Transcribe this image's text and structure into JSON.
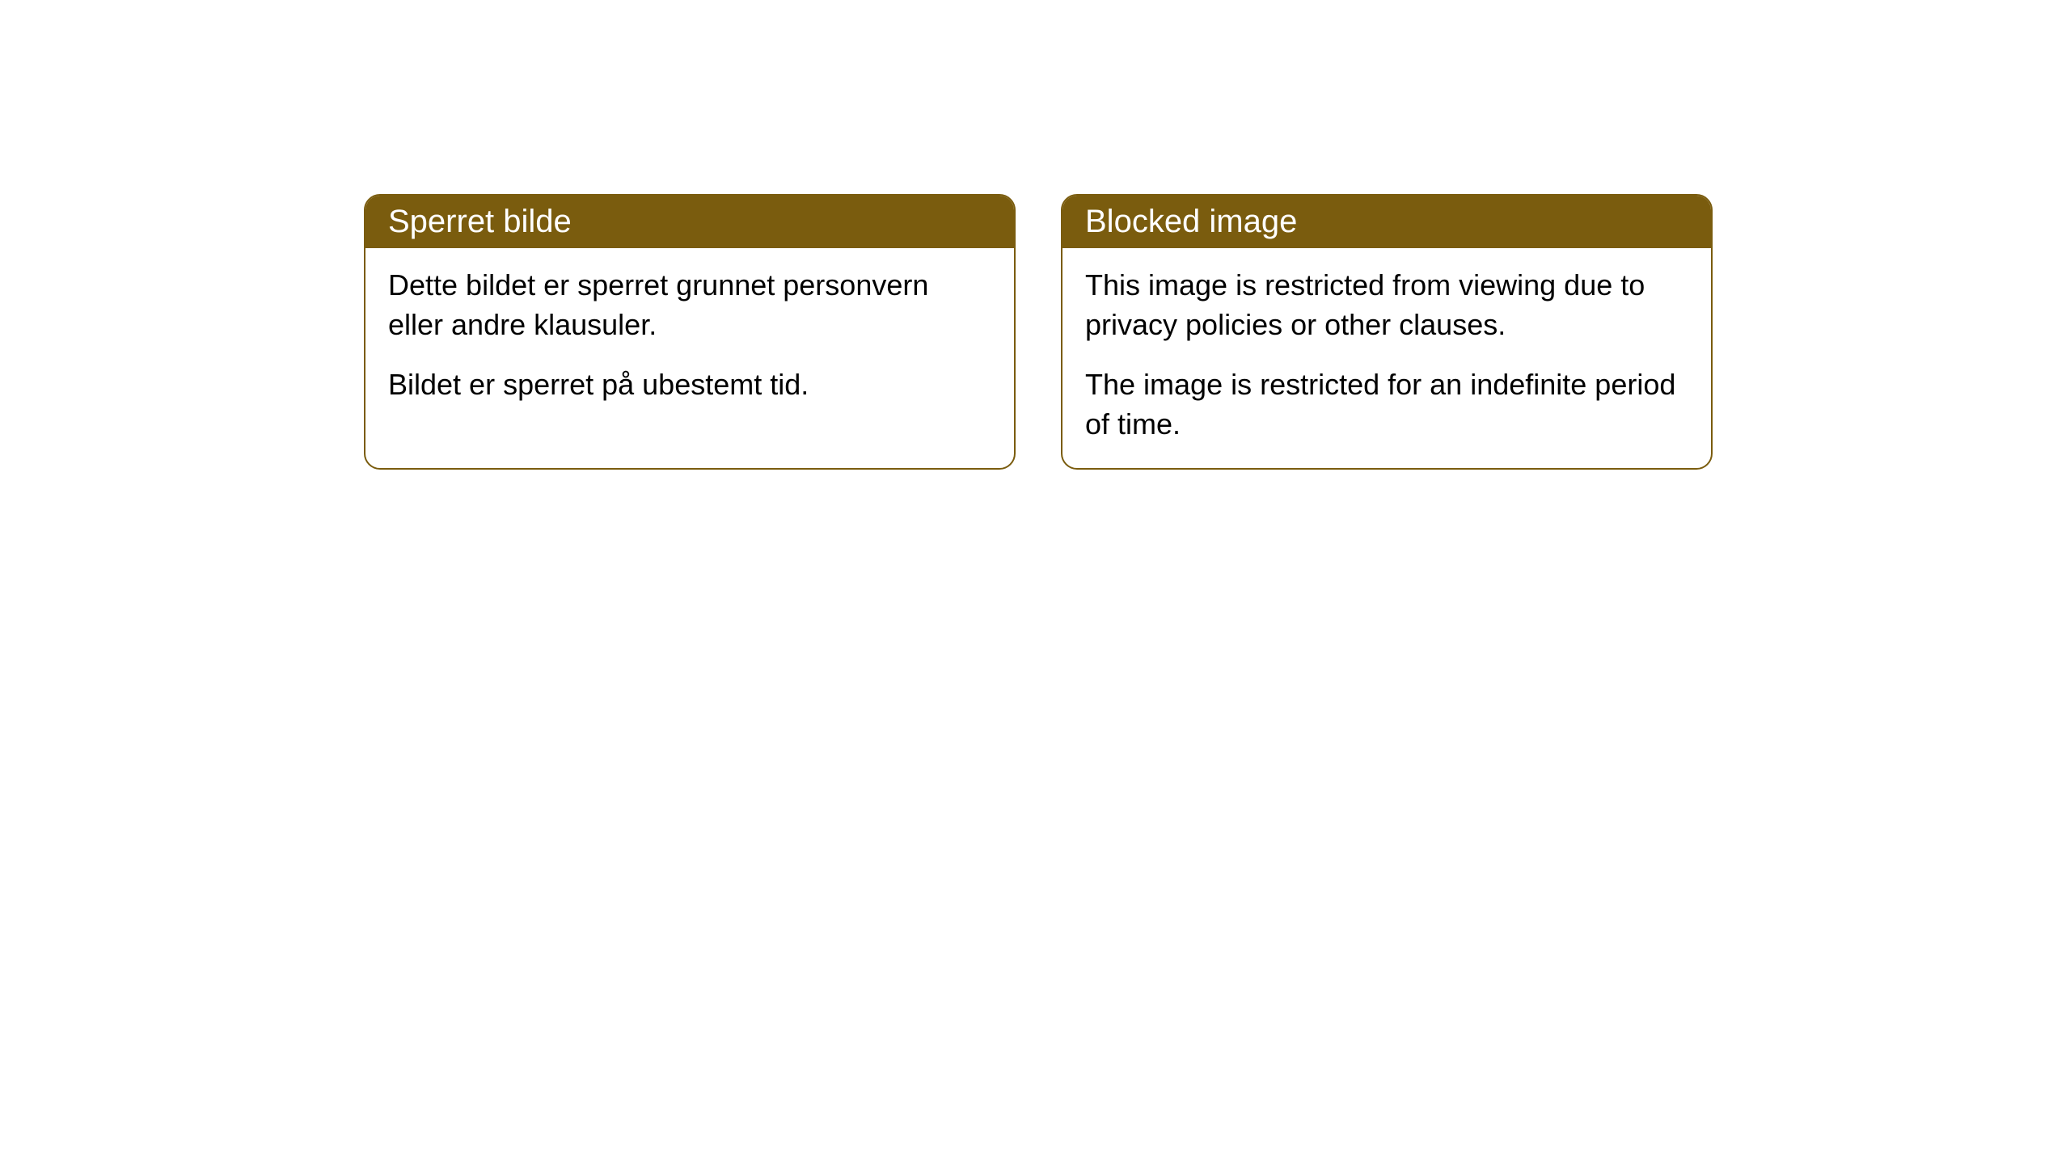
{
  "cards": [
    {
      "title": "Sperret bilde",
      "paragraph1": "Dette bildet er sperret grunnet personvern eller andre klausuler.",
      "paragraph2": "Bildet er sperret på ubestemt tid."
    },
    {
      "title": "Blocked image",
      "paragraph1": "This image is restricted from viewing due to privacy policies or other clauses.",
      "paragraph2": "The image is restricted for an indefinite period of time."
    }
  ],
  "styling": {
    "header_background": "#7a5c0e",
    "header_text_color": "#ffffff",
    "border_color": "#7a5c0e",
    "body_background": "#ffffff",
    "body_text_color": "#000000",
    "border_radius": 20,
    "header_font_size": 40,
    "body_font_size": 36
  }
}
